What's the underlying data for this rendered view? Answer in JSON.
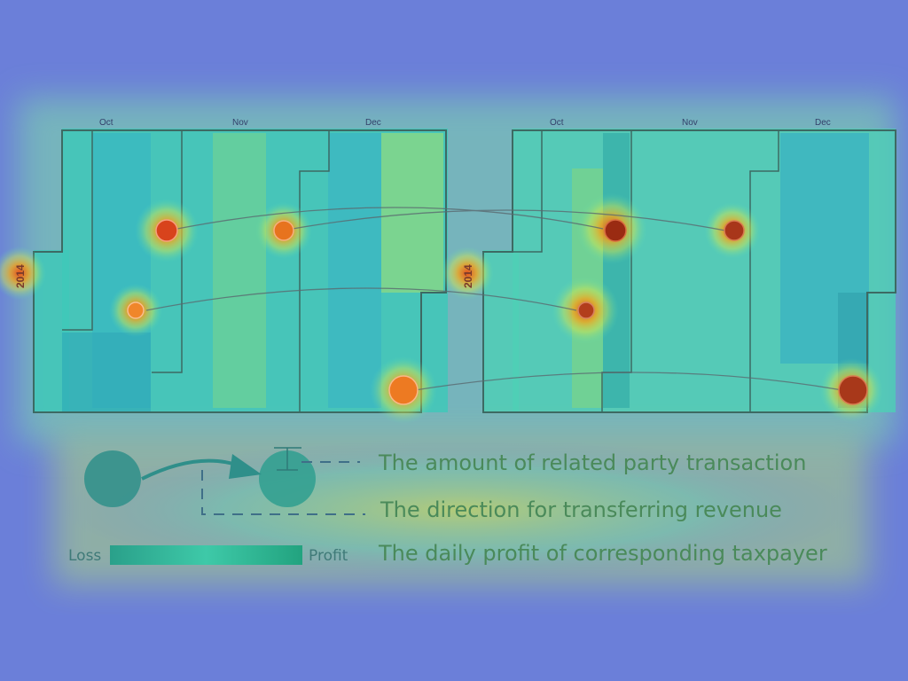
{
  "calendars": [
    {
      "year": "2014",
      "months": [
        "Oct",
        "Nov",
        "Dec"
      ]
    },
    {
      "year": "2014",
      "months": [
        "Oct",
        "Nov",
        "Dec"
      ]
    }
  ],
  "legend": {
    "amount_label": "The amount of related party transaction",
    "direction_label": "The direction for transferring revenue",
    "profit_label": "The daily profit of corresponding taxpayer",
    "loss_end": "Loss",
    "profit_end": "Profit"
  },
  "colors": {
    "background": "#6b7fd9",
    "calendar_outline": "#3d6a63",
    "hot_spot": "#d8431c",
    "legend_circle": "#2f8f8a",
    "legend_arrow": "#2f8f8a"
  }
}
